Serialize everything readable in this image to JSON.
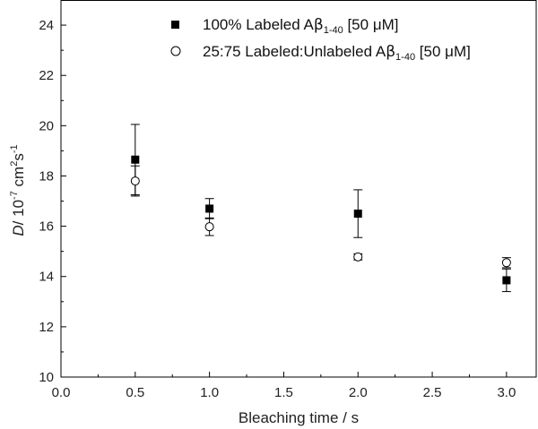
{
  "chart_data": {
    "type": "scatter",
    "title": "",
    "xlabel": "Bleaching time / s",
    "ylabel": {
      "symbol": "D",
      "rest": "/ 10",
      "exp1": "-7",
      "unit1": " cm",
      "exp2": "2",
      "unit2": "s",
      "exp3": "-1"
    },
    "xlim": [
      0.0,
      3.2
    ],
    "ylim": [
      10,
      25
    ],
    "xticks": [
      0.0,
      0.5,
      1.0,
      1.5,
      2.0,
      2.5,
      3.0
    ],
    "yticks": [
      10,
      12,
      14,
      16,
      18,
      20,
      22,
      24
    ],
    "xtick_labels": [
      "0.0",
      "0.5",
      "1.0",
      "1.5",
      "2.0",
      "2.5",
      "3.0"
    ],
    "ytick_labels": [
      "10",
      "12",
      "14",
      "16",
      "18",
      "20",
      "22",
      "24"
    ],
    "grid": false,
    "legend_position": "top-right",
    "series": [
      {
        "name": "100% Labeled Aβ1-40 [50 μM]",
        "legend": {
          "pre": "100% Labeled A",
          "beta": "β",
          "sub": "1-40",
          "post": " [50 μM]"
        },
        "marker": "filled-square",
        "color": "#000000",
        "x": [
          0.5,
          1.0,
          2.0,
          3.0
        ],
        "y": [
          18.65,
          16.7,
          16.5,
          13.85
        ],
        "yerr": [
          1.4,
          0.4,
          0.95,
          0.45
        ]
      },
      {
        "name": "25:75 Labeled:Unlabeled Aβ1-40 [50 μM]",
        "legend": {
          "pre": "25:75 Labeled:Unlabeled A",
          "beta": "β",
          "sub": "1-40",
          "post": "  [50 μM]"
        },
        "marker": "open-circle",
        "color": "#000000",
        "x": [
          0.5,
          1.0,
          2.0,
          3.0
        ],
        "y": [
          17.8,
          15.98,
          14.78,
          14.55
        ],
        "yerr": [
          0.6,
          0.35,
          0.12,
          0.2
        ]
      }
    ]
  }
}
